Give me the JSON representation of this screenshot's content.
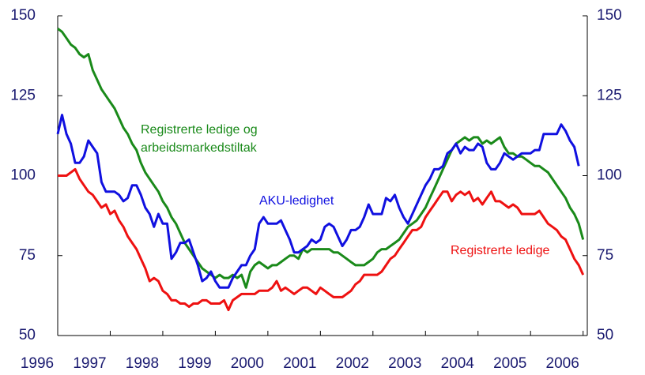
{
  "chart_data": {
    "type": "line",
    "x": [
      1996,
      1996.083,
      1996.167,
      1996.25,
      1996.333,
      1996.417,
      1996.5,
      1996.583,
      1996.667,
      1996.75,
      1996.833,
      1996.917,
      1997,
      1997.083,
      1997.167,
      1997.25,
      1997.333,
      1997.417,
      1997.5,
      1997.583,
      1997.667,
      1997.75,
      1997.833,
      1997.917,
      1998,
      1998.083,
      1998.167,
      1998.25,
      1998.333,
      1998.417,
      1998.5,
      1998.583,
      1998.667,
      1998.75,
      1998.833,
      1998.917,
      1999,
      1999.083,
      1999.167,
      1999.25,
      1999.333,
      1999.417,
      1999.5,
      1999.583,
      1999.667,
      1999.75,
      1999.833,
      1999.917,
      2000,
      2000.083,
      2000.167,
      2000.25,
      2000.333,
      2000.417,
      2000.5,
      2000.583,
      2000.667,
      2000.75,
      2000.833,
      2000.917,
      2001,
      2001.083,
      2001.167,
      2001.25,
      2001.333,
      2001.417,
      2001.5,
      2001.583,
      2001.667,
      2001.75,
      2001.833,
      2001.917,
      2002,
      2002.083,
      2002.167,
      2002.25,
      2002.333,
      2002.417,
      2002.5,
      2002.583,
      2002.667,
      2002.75,
      2002.833,
      2002.917,
      2003,
      2003.083,
      2003.167,
      2003.25,
      2003.333,
      2003.417,
      2003.5,
      2003.583,
      2003.667,
      2003.75,
      2003.833,
      2003.917,
      2004,
      2004.083,
      2004.167,
      2004.25,
      2004.333,
      2004.417,
      2004.5,
      2004.583,
      2004.667,
      2004.75,
      2004.833,
      2004.917,
      2005,
      2005.083,
      2005.167,
      2005.25,
      2005.333,
      2005.417,
      2005.5,
      2005.583,
      2005.667,
      2005.75,
      2005.833,
      2005.917,
      2006
    ],
    "series": [
      {
        "name": "Registrerte ledige og arbeidsmarkedstiltak",
        "color": "#1a8a1a",
        "values": [
          146,
          145,
          143,
          141,
          140,
          138,
          137,
          138,
          133,
          130,
          127,
          125,
          123,
          121,
          118,
          115,
          113,
          110,
          108,
          104,
          101,
          99,
          97,
          95,
          92,
          90,
          87,
          85,
          82,
          79,
          77,
          75,
          73,
          71,
          70,
          69,
          68,
          69,
          68,
          68,
          69,
          68,
          69,
          65,
          70,
          72,
          73,
          72,
          71,
          72,
          72,
          73,
          74,
          75,
          75,
          74,
          77,
          76,
          77,
          77,
          77,
          77,
          77,
          76,
          76,
          75,
          74,
          73,
          72,
          72,
          72,
          73,
          74,
          76,
          77,
          77,
          78,
          79,
          80,
          82,
          84,
          85,
          86,
          88,
          90,
          93,
          96,
          99,
          102,
          105,
          108,
          110,
          111,
          112,
          111,
          112,
          112,
          110,
          111,
          110,
          111,
          112,
          109,
          107,
          107,
          106,
          106,
          105,
          104,
          103,
          103,
          102,
          101,
          99,
          97,
          95,
          93,
          90,
          88,
          85,
          80
        ]
      },
      {
        "name": "AKU-ledighet",
        "color": "#1010e0",
        "values": [
          113,
          119,
          113,
          110,
          104,
          104,
          106,
          111,
          109,
          107,
          98,
          95,
          95,
          95,
          94,
          92,
          93,
          97,
          97,
          94,
          90,
          88,
          84,
          88,
          85,
          85,
          74,
          76,
          79,
          79,
          80,
          76,
          72,
          67,
          68,
          70,
          67,
          65,
          65,
          65,
          68,
          70,
          72,
          72,
          75,
          77,
          85,
          87,
          85,
          85,
          85,
          86,
          83,
          80,
          76,
          76,
          77,
          78,
          80,
          79,
          80,
          84,
          85,
          84,
          81,
          78,
          80,
          83,
          83,
          84,
          87,
          91,
          88,
          88,
          88,
          93,
          92,
          94,
          90,
          87,
          85,
          88,
          91,
          94,
          97,
          99,
          102,
          102,
          103,
          107,
          108,
          110,
          107,
          109,
          108,
          108,
          110,
          109,
          104,
          102,
          102,
          104,
          107,
          106,
          105,
          106,
          107,
          107,
          107,
          108,
          108,
          113,
          113,
          113,
          113,
          116,
          114,
          111,
          109,
          103,
          null
        ]
      },
      {
        "name": "Registrerte ledige",
        "color": "#ee1111",
        "values": [
          100,
          100,
          100,
          101,
          102,
          99,
          97,
          95,
          94,
          92,
          90,
          91,
          88,
          89,
          86,
          84,
          81,
          79,
          77,
          74,
          71,
          67,
          68,
          67,
          64,
          63,
          61,
          61,
          60,
          60,
          59,
          60,
          60,
          61,
          61,
          60,
          60,
          60,
          61,
          58,
          61,
          62,
          63,
          63,
          63,
          63,
          64,
          64,
          64,
          65,
          67,
          64,
          65,
          64,
          63,
          64,
          65,
          65,
          64,
          63,
          65,
          64,
          63,
          62,
          62,
          62,
          63,
          64,
          66,
          67,
          69,
          69,
          69,
          69,
          70,
          72,
          74,
          75,
          77,
          79,
          81,
          83,
          83,
          84,
          87,
          89,
          91,
          93,
          95,
          95,
          92,
          94,
          95,
          94,
          95,
          92,
          93,
          91,
          93,
          95,
          92,
          92,
          91,
          90,
          91,
          90,
          88,
          88,
          88,
          88,
          89,
          87,
          85,
          84,
          83,
          81,
          80,
          77,
          74,
          72,
          69
        ]
      }
    ],
    "annotations": [
      {
        "lines": [
          "Registrerte ledige og",
          "arbeidsmarkedstiltak"
        ],
        "series": 0
      },
      {
        "lines": [
          "AKU-ledighet"
        ],
        "series": 1
      },
      {
        "lines": [
          "Registrerte ledige"
        ],
        "series": 2
      }
    ],
    "xlim": [
      1996,
      2006.08
    ],
    "xticks": [
      1996,
      1997,
      1998,
      1999,
      2000,
      2001,
      2002,
      2003,
      2004,
      2005,
      2006
    ],
    "ylim": [
      50,
      150
    ],
    "yticks": [
      50,
      75,
      100,
      125,
      150
    ],
    "y2lim": [
      50,
      150
    ],
    "y2ticks": [
      50,
      75,
      100,
      125,
      150
    ],
    "grid": false
  }
}
